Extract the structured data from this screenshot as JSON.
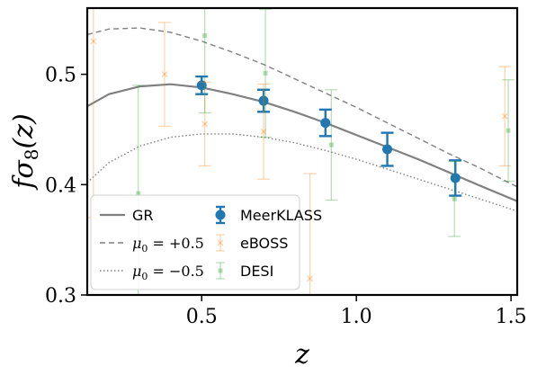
{
  "chart_data": {
    "type": "scatter",
    "title": "",
    "xlabel": "z",
    "ylabel": "fσ8(z)",
    "xlim": [
      0.13,
      1.52
    ],
    "ylim": [
      0.3,
      0.56
    ],
    "xticks": [
      {
        "v": 0.5,
        "label": "0.5"
      },
      {
        "v": 1.0,
        "label": "1.0"
      },
      {
        "v": 1.5,
        "label": "1.5"
      }
    ],
    "yticks": [
      {
        "v": 0.3,
        "label": "0.3"
      },
      {
        "v": 0.4,
        "label": "0.4"
      },
      {
        "v": 0.5,
        "label": "0.5"
      }
    ],
    "grid": false,
    "legend_position": "lower-left",
    "colors": {
      "gr": "#808080",
      "meerklass": "#1f77b4",
      "eboss": "#ff7f0e",
      "desi": "#2ca02c"
    },
    "lines": [
      {
        "name": "GR",
        "style": "solid",
        "x": [
          0.13,
          0.2,
          0.3,
          0.4,
          0.5,
          0.6,
          0.7,
          0.8,
          0.9,
          1.0,
          1.1,
          1.2,
          1.3,
          1.4,
          1.52
        ],
        "y": [
          0.471,
          0.482,
          0.489,
          0.491,
          0.488,
          0.482,
          0.475,
          0.466,
          0.456,
          0.445,
          0.434,
          0.423,
          0.411,
          0.399,
          0.385
        ]
      },
      {
        "name": "μ0 = +0.5",
        "style": "dashed",
        "x": [
          0.13,
          0.2,
          0.3,
          0.4,
          0.5,
          0.6,
          0.7,
          0.8,
          0.9,
          1.0,
          1.1,
          1.2,
          1.3,
          1.4,
          1.52
        ],
        "y": [
          0.536,
          0.541,
          0.542,
          0.538,
          0.53,
          0.52,
          0.509,
          0.496,
          0.483,
          0.47,
          0.456,
          0.442,
          0.428,
          0.415,
          0.398
        ]
      },
      {
        "name": "μ0 = −0.5",
        "style": "dotted",
        "x": [
          0.13,
          0.2,
          0.3,
          0.4,
          0.5,
          0.6,
          0.7,
          0.8,
          0.9,
          1.0,
          1.1,
          1.2,
          1.3,
          1.4,
          1.52
        ],
        "y": [
          0.402,
          0.42,
          0.435,
          0.443,
          0.446,
          0.446,
          0.443,
          0.438,
          0.431,
          0.423,
          0.414,
          0.405,
          0.396,
          0.387,
          0.376
        ]
      }
    ],
    "series": [
      {
        "name": "MeerKLASS",
        "marker": "circle",
        "x": [
          0.5,
          0.7,
          0.9,
          1.1,
          1.32
        ],
        "y": [
          0.49,
          0.476,
          0.456,
          0.432,
          0.406
        ],
        "err": [
          0.008,
          0.01,
          0.012,
          0.015,
          0.016
        ]
      },
      {
        "name": "eBOSS",
        "marker": "x",
        "x": [
          0.15,
          0.38,
          0.51,
          0.7,
          0.85,
          1.48
        ],
        "y": [
          0.53,
          0.5,
          0.455,
          0.448,
          0.315,
          0.462
        ],
        "err": [
          0.16,
          0.047,
          0.038,
          0.043,
          0.095,
          0.045
        ]
      },
      {
        "name": "DESI",
        "marker": "square",
        "x": [
          0.295,
          0.51,
          0.706,
          0.919,
          1.317,
          1.491
        ],
        "y": [
          0.392,
          0.535,
          0.501,
          0.436,
          0.387,
          0.449
        ],
        "err": [
          0.098,
          0.07,
          0.058,
          0.05,
          0.034,
          0.046
        ]
      }
    ],
    "legend": [
      {
        "label": "GR",
        "kind": "line",
        "style": "solid",
        "math": false
      },
      {
        "label": "μ0 = +0.5",
        "kind": "line",
        "style": "dashed",
        "math": true,
        "pre": "μ",
        "sub": "0",
        "post": " = +0.5"
      },
      {
        "label": "μ0 = −0.5",
        "kind": "line",
        "style": "dotted",
        "math": true,
        "pre": "μ",
        "sub": "0",
        "post": " = −0.5"
      },
      {
        "label": "MeerKLASS",
        "kind": "marker",
        "series": "MeerKLASS"
      },
      {
        "label": "eBOSS",
        "kind": "marker",
        "series": "eBOSS"
      },
      {
        "label": "DESI",
        "kind": "marker",
        "series": "DESI"
      }
    ]
  }
}
